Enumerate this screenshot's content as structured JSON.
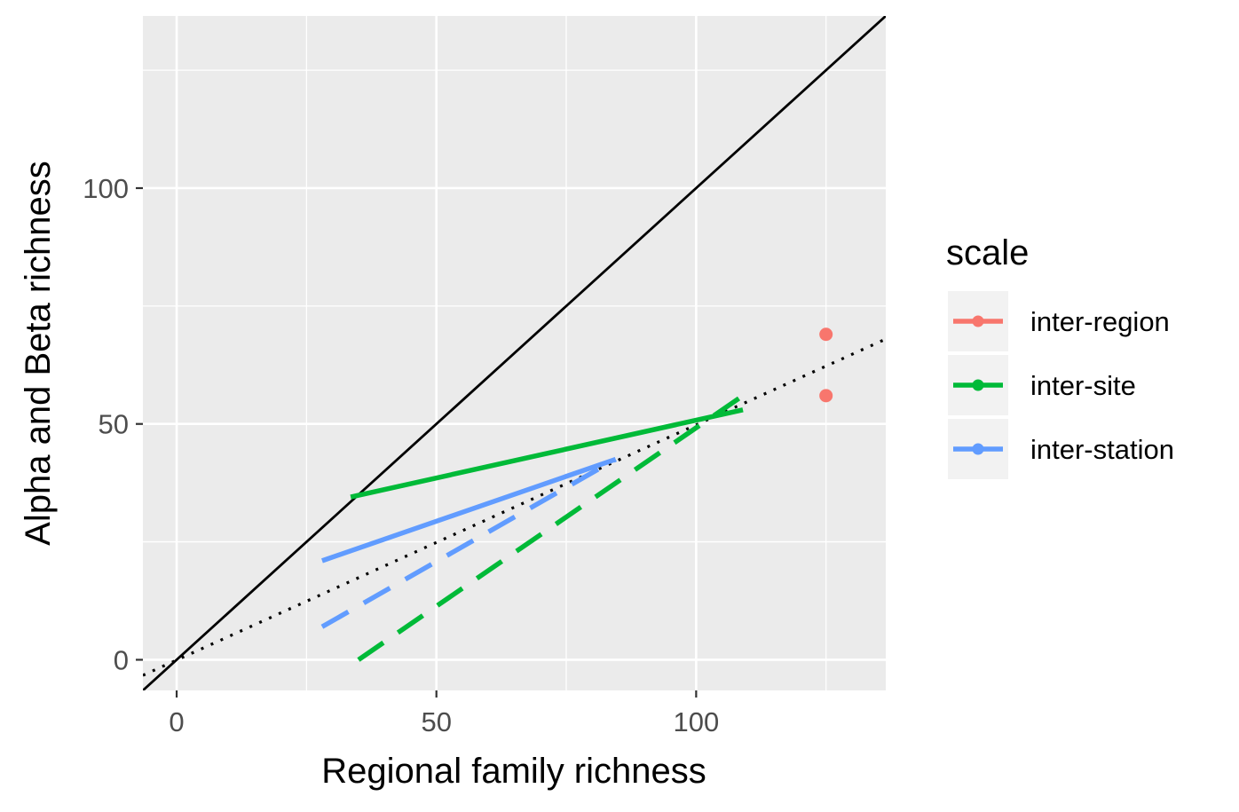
{
  "chart_data": {
    "type": "line",
    "xlabel": "Regional family richness",
    "ylabel": "Alpha and Beta richness",
    "xlim": [
      -6.5,
      136.5
    ],
    "ylim": [
      -6.5,
      136.5
    ],
    "x_ticks": [
      0,
      50,
      100
    ],
    "y_ticks": [
      0,
      50,
      100
    ],
    "x_tick_labels": [
      "0",
      "50",
      "100"
    ],
    "y_tick_labels": [
      "0",
      "50",
      "100"
    ],
    "grid": true,
    "background": "#ebebeb",
    "legend": {
      "title": "scale",
      "position": "right",
      "entries": [
        {
          "label": "inter-region",
          "color": "#f8766d"
        },
        {
          "label": "inter-site",
          "color": "#00ba38"
        },
        {
          "label": "inter-station",
          "color": "#619cff"
        }
      ]
    },
    "reference_lines": [
      {
        "style": "solid",
        "color": "#000000",
        "x": [
          -6.5,
          136.5
        ],
        "y": [
          -6.5,
          136.5
        ]
      },
      {
        "style": "dotted",
        "color": "#000000",
        "x": [
          -6.5,
          136.5
        ],
        "y": [
          -3.3,
          68
        ]
      }
    ],
    "series": [
      {
        "name": "inter-region",
        "color": "#f8766d",
        "kind": "points",
        "x": [
          125,
          125
        ],
        "y": [
          69,
          56
        ]
      },
      {
        "name": "inter-site",
        "color": "#00ba38",
        "kind": "line",
        "style": "solid",
        "x": [
          33.5,
          109
        ],
        "y": [
          34.5,
          53
        ]
      },
      {
        "name": "inter-site",
        "color": "#00ba38",
        "kind": "line",
        "style": "dashed",
        "x": [
          35,
          109
        ],
        "y": [
          0,
          56
        ]
      },
      {
        "name": "inter-station",
        "color": "#619cff",
        "kind": "line",
        "style": "solid",
        "x": [
          28,
          84.5
        ],
        "y": [
          21,
          42.5
        ]
      },
      {
        "name": "inter-station",
        "color": "#619cff",
        "kind": "line",
        "style": "dashed",
        "x": [
          28,
          84.5
        ],
        "y": [
          7,
          42.5
        ]
      }
    ]
  }
}
